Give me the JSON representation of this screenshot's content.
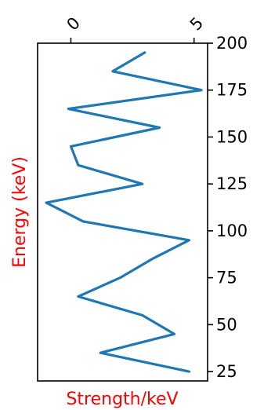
{
  "chart_data": {
    "type": "line",
    "xlabel": "Strength/keV",
    "ylabel": "Energy (keV)",
    "xlabel_color": "#ff0000",
    "ylabel_color": "#ff0000",
    "line_color": "#1f77b4",
    "xlim": [
      -1.35,
      5.55
    ],
    "ylim": [
      20,
      200
    ],
    "x_ticks": [
      0,
      5
    ],
    "x_tick_position": "top",
    "y_ticks": [
      25,
      50,
      75,
      100,
      125,
      150,
      175,
      200
    ],
    "y_tick_position": "right",
    "grid": false,
    "series": [
      {
        "x": [
          4.8,
          1.2,
          4.2,
          2.9,
          0.3,
          2.0,
          3.3,
          4.8,
          0.5,
          -1.0,
          2.9,
          0.3,
          0.0,
          3.6,
          -0.1,
          5.3,
          1.7,
          3.0
        ],
        "y": [
          25,
          35,
          45,
          55,
          65,
          75,
          85,
          95,
          105,
          115,
          125,
          135,
          145,
          155,
          165,
          175,
          185,
          195
        ]
      }
    ]
  }
}
